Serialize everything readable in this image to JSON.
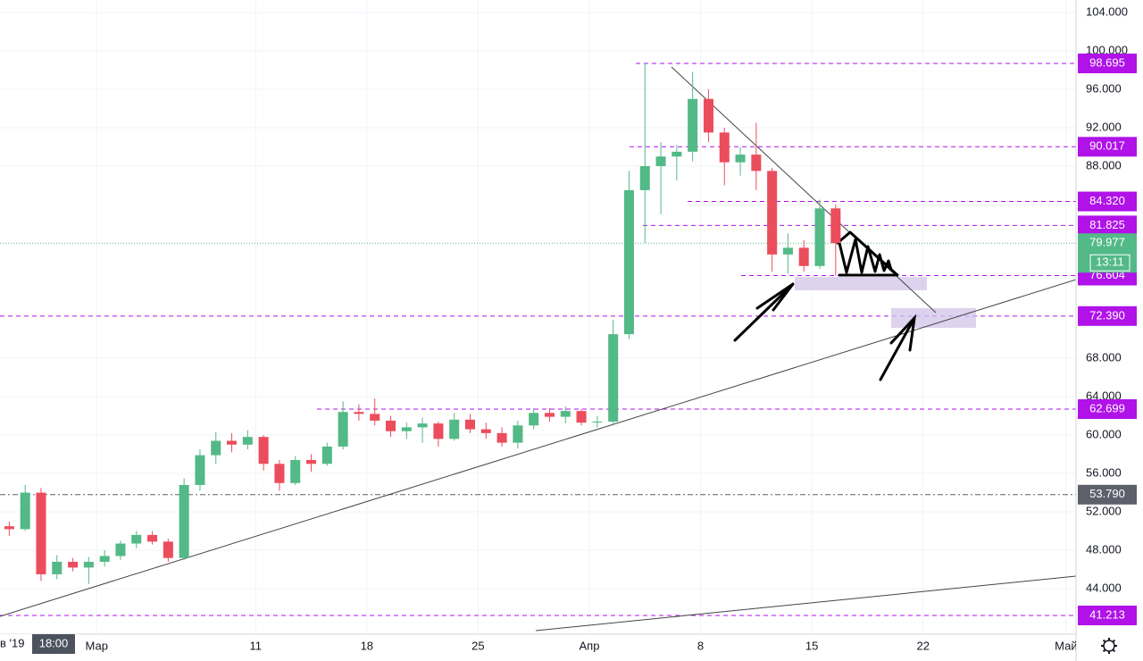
{
  "chart_data": {
    "type": "candlestick",
    "up_color": "#53b987",
    "down_color": "#eb4d5c",
    "grid": true,
    "x": [
      "2019-02-23",
      "2019-02-24",
      "2019-02-25",
      "2019-02-26",
      "2019-02-27",
      "2019-02-28",
      "2019-03-01",
      "2019-03-02",
      "2019-03-03",
      "2019-03-04",
      "2019-03-05",
      "2019-03-06",
      "2019-03-07",
      "2019-03-08",
      "2019-03-09",
      "2019-03-10",
      "2019-03-11",
      "2019-03-12",
      "2019-03-13",
      "2019-03-14",
      "2019-03-15",
      "2019-03-16",
      "2019-03-17",
      "2019-03-18",
      "2019-03-19",
      "2019-03-20",
      "2019-03-21",
      "2019-03-22",
      "2019-03-23",
      "2019-03-24",
      "2019-03-25",
      "2019-03-26",
      "2019-03-27",
      "2019-03-28",
      "2019-03-29",
      "2019-03-30",
      "2019-03-31",
      "2019-04-01",
      "2019-04-02",
      "2019-04-03",
      "2019-04-04",
      "2019-04-05",
      "2019-04-06",
      "2019-04-07",
      "2019-04-08",
      "2019-04-09",
      "2019-04-10",
      "2019-04-11",
      "2019-04-12",
      "2019-04-13",
      "2019-04-14",
      "2019-04-15",
      "2019-04-16"
    ],
    "open": [
      50.5,
      50.2,
      54,
      45.5,
      46.8,
      46.2,
      46.8,
      47.4,
      48.7,
      49.6,
      48.9,
      47.2,
      54.8,
      57.9,
      59.4,
      59,
      59.8,
      57,
      55,
      57.4,
      57,
      58.8,
      62.4,
      62.2,
      61.5,
      60.4,
      60.8,
      61.2,
      59.6,
      61.6,
      60.6,
      60.2,
      59.2,
      61,
      62.3,
      61.9,
      62.5,
      61.3,
      61.4,
      70.5,
      85.5,
      88,
      89,
      89.5,
      95,
      91.5,
      88.4,
      89.2,
      87.5,
      78.8,
      79.5,
      77.6,
      83.6
    ],
    "high": [
      51,
      54.8,
      54.5,
      47.5,
      47.2,
      47.3,
      48,
      49,
      50,
      50,
      49.2,
      55.5,
      58.5,
      60.3,
      60.2,
      60.5,
      60,
      57.4,
      57.8,
      58,
      59.2,
      63.5,
      63.2,
      63.8,
      62,
      61.3,
      61.8,
      61.4,
      62.3,
      62.2,
      61.3,
      60.8,
      61.5,
      62.8,
      62.8,
      63,
      62.7,
      62,
      72,
      87.5,
      98.7,
      90.5,
      90.2,
      97.8,
      96,
      92,
      90,
      92.5,
      87.8,
      81,
      80.3,
      84.5,
      84
    ],
    "low": [
      49.5,
      50,
      44.8,
      45,
      45.8,
      44.5,
      46.3,
      47,
      48.2,
      48.6,
      46.8,
      47,
      54.2,
      57,
      58.2,
      58.5,
      56.3,
      54.2,
      54.8,
      56.2,
      56.8,
      58.5,
      61.5,
      61,
      59.8,
      59.6,
      59.2,
      58.8,
      59.4,
      60.2,
      59.6,
      58.8,
      58.6,
      60.6,
      61.4,
      61.2,
      61,
      60.8,
      61,
      70,
      80,
      83,
      86.5,
      88.5,
      90.5,
      86,
      87,
      85.5,
      77,
      76.8,
      77,
      77.3,
      76.6
    ],
    "close": [
      50.2,
      54,
      45.5,
      46.8,
      46.2,
      46.8,
      47.4,
      48.7,
      49.6,
      48.9,
      47.2,
      54.8,
      57.9,
      59.4,
      59,
      59.8,
      57,
      55,
      57.4,
      57,
      58.8,
      62.4,
      62.2,
      61.5,
      60.4,
      60.8,
      61.2,
      59.6,
      61.6,
      60.6,
      60.2,
      59.2,
      61,
      62.3,
      61.9,
      62.5,
      61.3,
      61.4,
      70.5,
      85.5,
      88,
      89,
      89.5,
      95,
      91.5,
      88.4,
      89.2,
      87.5,
      78.8,
      79.5,
      77.6,
      83.6,
      79.977
    ],
    "xlim": [
      "2019-02-22T22:00",
      "2019-05-01T15:00"
    ],
    "xticks": [
      {
        "value": "2019-03-01",
        "label": "Мар"
      },
      {
        "value": "2019-03-11",
        "label": "11"
      },
      {
        "value": "2019-03-18",
        "label": "18"
      },
      {
        "value": "2019-03-25",
        "label": "25"
      },
      {
        "value": "2019-04-01",
        "label": "Апр"
      },
      {
        "value": "2019-04-08",
        "label": "8"
      },
      {
        "value": "2019-04-15",
        "label": "15"
      },
      {
        "value": "2019-04-22",
        "label": "22"
      },
      {
        "value": "2019-05-01",
        "label": "Май"
      }
    ],
    "ylim": [
      39.26,
      105.3
    ],
    "yticks": [
      {
        "value": 44,
        "label": "44.000"
      },
      {
        "value": 48,
        "label": "48.000"
      },
      {
        "value": 52,
        "label": "52.000"
      },
      {
        "value": 56,
        "label": "56.000"
      },
      {
        "value": 60,
        "label": "60.000"
      },
      {
        "value": 64,
        "label": "64.000"
      },
      {
        "value": 68,
        "label": "68.000"
      },
      {
        "value": 88,
        "label": "88.000"
      },
      {
        "value": 92,
        "label": "92.000"
      },
      {
        "value": 96,
        "label": "96.000"
      },
      {
        "value": 100,
        "label": "100.000"
      },
      {
        "value": 104,
        "label": "104.000"
      }
    ],
    "levels": [
      {
        "value": 98.695,
        "label": "98.695",
        "color": "#b012e8"
      },
      {
        "value": 90.017,
        "label": "90.017",
        "color": "#b012e8"
      },
      {
        "value": 84.32,
        "label": "84.320",
        "color": "#b012e8"
      },
      {
        "value": 81.825,
        "label": "81.825",
        "color": "#b012e8"
      },
      {
        "value": 76.604,
        "label": "76.604",
        "color": "#b012e8"
      },
      {
        "value": 72.39,
        "label": "72.390",
        "color": "#b012e8"
      },
      {
        "value": 62.699,
        "label": "62.699",
        "color": "#b012e8"
      },
      {
        "value": 53.79,
        "label": "53.790",
        "color": "#5d606b"
      },
      {
        "value": 41.213,
        "label": "41.213",
        "color": "#b012e8"
      }
    ],
    "last_price": {
      "value": 79.977,
      "label": "79.977",
      "color": "#53b987"
    },
    "countdown": "13:11",
    "cursor_date": "в '19",
    "cursor_time": "18:00"
  }
}
